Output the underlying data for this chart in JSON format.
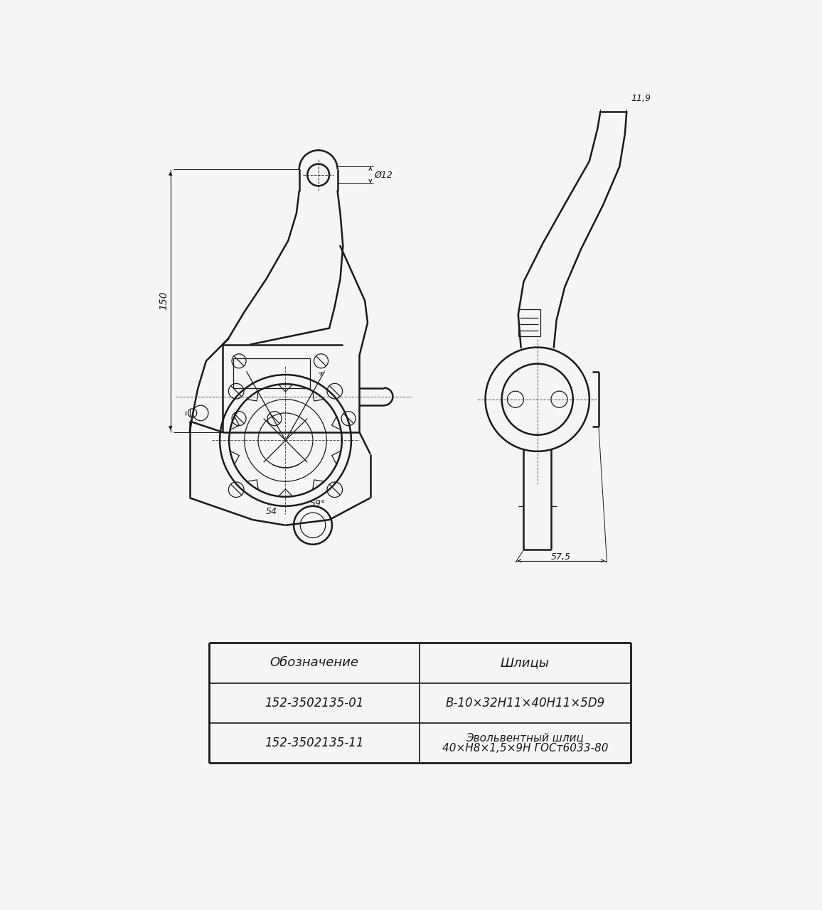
{
  "bg_color": "#f5f5f5",
  "line_color": "#1a1a1a",
  "table": {
    "headers": [
      "Обозначение",
      "Шлицы"
    ],
    "rows": [
      [
        "152-3502135-01",
        "В-10×32Н11×40Н11×5D9"
      ],
      [
        "152-3502135-11",
        "Эвольвентный шлиц\n40×Н8×1,5×9Н ГОСт6033-80"
      ]
    ]
  },
  "dim_150": "150",
  "dim_12": "Ø12",
  "dim_119": "11,9",
  "dim_575": "57,5",
  "dim_54": "54",
  "dim_59": "59°"
}
